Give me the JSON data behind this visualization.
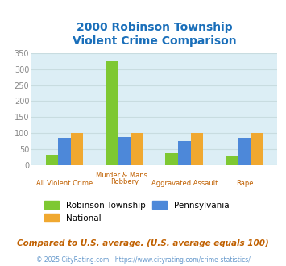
{
  "title": "2000 Robinson Township\nViolent Crime Comparison",
  "title_color": "#1a6fba",
  "cat_labels_line1": [
    "All Violent Crime",
    "Murder & Mans...",
    "Aggravated Assault",
    "Rape"
  ],
  "cat_labels_line2": [
    "",
    "Robbery",
    "",
    ""
  ],
  "robinson": [
    32,
    325,
    38,
    29
  ],
  "pennsylvania": [
    84,
    88,
    76,
    84
  ],
  "national": [
    100,
    100,
    100,
    100
  ],
  "robinson_color": "#7ec832",
  "pennsylvania_color": "#4d88d9",
  "national_color": "#f0a830",
  "ylim": [
    0,
    350
  ],
  "yticks": [
    0,
    50,
    100,
    150,
    200,
    250,
    300,
    350
  ],
  "fig_bg_color": "#ffffff",
  "plot_bg": "#dceef5",
  "footer_text": "Compared to U.S. average. (U.S. average equals 100)",
  "footer_color": "#c06000",
  "copyright_text": "© 2025 CityRating.com - https://www.cityrating.com/crime-statistics/",
  "copyright_color": "#6699cc",
  "xlabel_color": "#c06000",
  "tick_color": "#888888",
  "grid_color": "#c8dce0"
}
